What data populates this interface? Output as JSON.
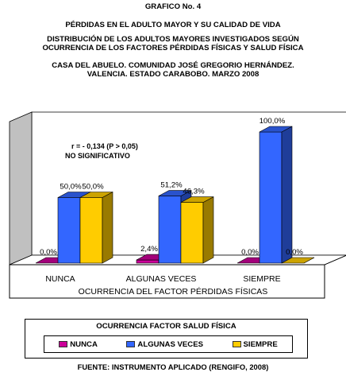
{
  "header": {
    "graph_no": "GRAFICO No. 4",
    "title": "PÉRDIDAS EN EL ADULTO MAYOR Y SU CALIDAD DE VIDA",
    "subtitle_1": "DISTRIBUCIÓN DE LOS ADULTOS MAYORES INVESTIGADOS SEGÚN",
    "subtitle_2": "OCURRENCIA DE LOS FACTORES PÉRDIDAS FÍSICAS Y SALUD FÍSICA",
    "place_1": "CASA DEL ABUELO. COMUNIDAD JOSÉ GREGORIO HERNÁNDEZ.",
    "place_2": "VALENCIA. ESTADO CARABOBO. MARZO 2008"
  },
  "chart_data": {
    "type": "bar",
    "categories": [
      "NUNCA",
      "ALGUNAS VECES",
      "SIEMPRE"
    ],
    "series": [
      {
        "name": "NUNCA",
        "values": [
          0.0,
          2.4,
          0.0
        ],
        "labels": [
          "0,0%",
          "2,4%",
          "0,0%"
        ],
        "color": "#cc0099"
      },
      {
        "name": "ALGUNAS VECES",
        "values": [
          50.0,
          51.2,
          100.0
        ],
        "labels": [
          "50,0%",
          "51,2%",
          "100,0%"
        ],
        "color": "#3366ff"
      },
      {
        "name": "SIEMPRE",
        "values": [
          50.0,
          46.3,
          0.0
        ],
        "labels": [
          "50,0%",
          "46,3%",
          "0,0%"
        ],
        "color": "#ffcc00"
      }
    ],
    "xlabel": "OCURRENCIA  DEL FACTOR PÉRDIDAS  FÍSICAS",
    "ylim": [
      0,
      100
    ],
    "grid": false,
    "annotation_1": "r = - 0,134 (P > 0,05)",
    "annotation_2": "NO SIGNIFICATIVO",
    "legend_title": "OCURRENCIA  FACTOR SALUD FÍSICA",
    "legend_position": "bottom",
    "wall_color": "#c0c0c0"
  },
  "footer": {
    "source": "FUENTE: INSTRUMENTO APLICADO (RENGIFO, 2008)"
  }
}
